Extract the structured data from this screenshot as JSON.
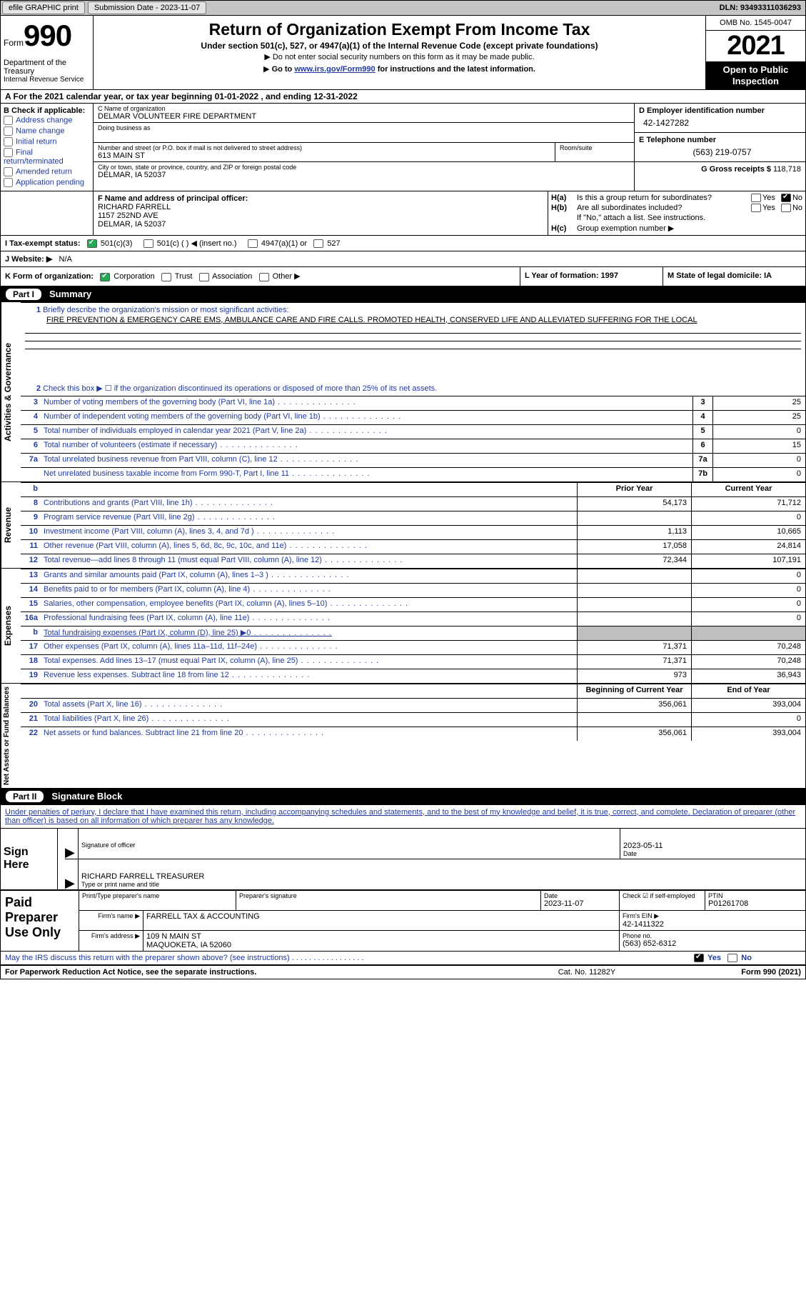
{
  "topbar": {
    "efile": "efile GRAPHIC print",
    "submission_label": "Submission Date - 2023-11-07",
    "dln_label": "DLN: 93493311036293"
  },
  "header": {
    "form_word": "Form",
    "form_num": "990",
    "dept": "Department of the Treasury",
    "irs": "Internal Revenue Service",
    "title": "Return of Organization Exempt From Income Tax",
    "sub1": "Under section 501(c), 527, or 4947(a)(1) of the Internal Revenue Code (except private foundations)",
    "sub2": "Do not enter social security numbers on this form as it may be made public.",
    "sub3_pre": "Go to ",
    "sub3_link": "www.irs.gov/Form990",
    "sub3_post": " for instructions and the latest information.",
    "omb": "OMB No. 1545-0047",
    "year": "2021",
    "otp1": "Open to Public",
    "otp2": "Inspection"
  },
  "lineA": "A For the 2021 calendar year, or tax year beginning 01-01-2022    , and ending 12-31-2022",
  "colB": {
    "hdr": "B Check if applicable:",
    "opts": [
      "Address change",
      "Name change",
      "Initial return",
      "Final return/terminated",
      "Amended return",
      "Application pending"
    ]
  },
  "colC": {
    "name_cap": "C Name of organization",
    "name_val": "DELMAR VOLUNTEER FIRE DEPARTMENT",
    "dba_cap": "Doing business as",
    "dba_val": "",
    "addr_cap": "Number and street (or P.O. box if mail is not delivered to street address)",
    "addr_val": "613 MAIN ST",
    "room_cap": "Room/suite",
    "room_val": "",
    "city_cap": "City or town, state or province, country, and ZIP or foreign postal code",
    "city_val": "DELMAR, IA  52037"
  },
  "colD": {
    "ein_cap": "D Employer identification number",
    "ein_val": "42-1427282",
    "tel_cap": "E Telephone number",
    "tel_val": "(563) 219-0757",
    "gross_cap": "G Gross receipts $",
    "gross_val": "118,718"
  },
  "colF": {
    "cap": "F Name and address of principal officer:",
    "l1": "RICHARD FARRELL",
    "l2": "1157 252ND AVE",
    "l3": "DELMAR, IA  52037"
  },
  "colH": {
    "ha": "H(a)",
    "ha_txt": "Is this a group return for subordinates?",
    "hb": "H(b)",
    "hb_txt": "Are all subordinates included?",
    "hb_note": "If \"No,\" attach a list. See instructions.",
    "hc": "H(c)",
    "hc_txt": "Group exemption number ▶",
    "yes": "Yes",
    "no": "No"
  },
  "rowI": {
    "lbl": "I Tax-exempt status:",
    "o1": "501(c)(3)",
    "o2": "501(c) (  ) ◀ (insert no.)",
    "o3": "4947(a)(1) or",
    "o4": "527"
  },
  "rowJ": {
    "lbl": "J  Website: ▶",
    "val": "N/A"
  },
  "rowK": {
    "lbl": "K Form of organization:",
    "o1": "Corporation",
    "o2": "Trust",
    "o3": "Association",
    "o4": "Other ▶",
    "L": "L Year of formation: 1997",
    "M": "M State of legal domicile: IA"
  },
  "part1": {
    "num": "Part I",
    "title": "Summary"
  },
  "vtabs": {
    "ag": "Activities & Governance",
    "rev": "Revenue",
    "exp": "Expenses",
    "na": "Net Assets or Fund Balances"
  },
  "line1": {
    "num": "1",
    "txt": "Briefly describe the organization's mission or most significant activities:",
    "val": "FIRE PREVENTION & EMERGENCY CARE EMS, AMBULANCE CARE AND FIRE CALLS. PROMOTED HEALTH, CONSERVED LIFE AND ALLEVIATED SUFFERING FOR THE LOCAL"
  },
  "line2": {
    "num": "2",
    "txt": "Check this box ▶ ☐ if the organization discontinued its operations or disposed of more than 25% of its net assets."
  },
  "govRows": [
    {
      "n": "3",
      "d": "Number of voting members of the governing body (Part VI, line 1a)",
      "b": "3",
      "v": "25"
    },
    {
      "n": "4",
      "d": "Number of independent voting members of the governing body (Part VI, line 1b)",
      "b": "4",
      "v": "25"
    },
    {
      "n": "5",
      "d": "Total number of individuals employed in calendar year 2021 (Part V, line 2a)",
      "b": "5",
      "v": "0"
    },
    {
      "n": "6",
      "d": "Total number of volunteers (estimate if necessary)",
      "b": "6",
      "v": "15"
    },
    {
      "n": "7a",
      "d": "Total unrelated business revenue from Part VIII, column (C), line 12",
      "b": "7a",
      "v": "0"
    },
    {
      "n": "",
      "d": "Net unrelated business taxable income from Form 990-T, Part I, line 11",
      "b": "7b",
      "v": "0"
    }
  ],
  "pcHdr": {
    "b": "b",
    "prior": "Prior Year",
    "curr": "Current Year"
  },
  "revRows": [
    {
      "n": "8",
      "d": "Contributions and grants (Part VIII, line 1h)",
      "p": "54,173",
      "c": "71,712"
    },
    {
      "n": "9",
      "d": "Program service revenue (Part VIII, line 2g)",
      "p": "",
      "c": "0"
    },
    {
      "n": "10",
      "d": "Investment income (Part VIII, column (A), lines 3, 4, and 7d )",
      "p": "1,113",
      "c": "10,665"
    },
    {
      "n": "11",
      "d": "Other revenue (Part VIII, column (A), lines 5, 6d, 8c, 9c, 10c, and 11e)",
      "p": "17,058",
      "c": "24,814"
    },
    {
      "n": "12",
      "d": "Total revenue—add lines 8 through 11 (must equal Part VIII, column (A), line 12)",
      "p": "72,344",
      "c": "107,191"
    }
  ],
  "expRows": [
    {
      "n": "13",
      "d": "Grants and similar amounts paid (Part IX, column (A), lines 1–3 )",
      "p": "",
      "c": "0"
    },
    {
      "n": "14",
      "d": "Benefits paid to or for members (Part IX, column (A), line 4)",
      "p": "",
      "c": "0"
    },
    {
      "n": "15",
      "d": "Salaries, other compensation, employee benefits (Part IX, column (A), lines 5–10)",
      "p": "",
      "c": "0"
    },
    {
      "n": "16a",
      "d": "Professional fundraising fees (Part IX, column (A), line 11e)",
      "p": "",
      "c": "0"
    },
    {
      "n": "b",
      "d": "Total fundraising expenses (Part IX, column (D), line 25) ▶0",
      "p": "SHADE",
      "c": "SHADE"
    },
    {
      "n": "17",
      "d": "Other expenses (Part IX, column (A), lines 11a–11d, 11f–24e)",
      "p": "71,371",
      "c": "70,248"
    },
    {
      "n": "18",
      "d": "Total expenses. Add lines 13–17 (must equal Part IX, column (A), line 25)",
      "p": "71,371",
      "c": "70,248"
    },
    {
      "n": "19",
      "d": "Revenue less expenses. Subtract line 18 from line 12",
      "p": "973",
      "c": "36,943"
    }
  ],
  "naHdr": {
    "prior": "Beginning of Current Year",
    "curr": "End of Year"
  },
  "naRows": [
    {
      "n": "20",
      "d": "Total assets (Part X, line 16)",
      "p": "356,061",
      "c": "393,004"
    },
    {
      "n": "21",
      "d": "Total liabilities (Part X, line 26)",
      "p": "",
      "c": "0"
    },
    {
      "n": "22",
      "d": "Net assets or fund balances. Subtract line 21 from line 20",
      "p": "356,061",
      "c": "393,004"
    }
  ],
  "part2": {
    "num": "Part II",
    "title": "Signature Block"
  },
  "penalty": "Under penalties of perjury, I declare that I have examined this return, including accompanying schedules and statements, and to the best of my knowledge and belief, it is true, correct, and complete. Declaration of preparer (other than officer) is based on all information of which preparer has any knowledge.",
  "sign": {
    "lbl1": "Sign",
    "lbl2": "Here",
    "sig_cap": "Signature of officer",
    "date_val": "2023-05-11",
    "date_cap": "Date",
    "name_val": "RICHARD FARRELL  TREASURER",
    "name_cap": "Type or print name and title"
  },
  "paid": {
    "lbl1": "Paid",
    "lbl2": "Preparer",
    "lbl3": "Use Only",
    "r1": {
      "c1": "Print/Type preparer's name",
      "c2": "Preparer's signature",
      "c3_cap": "Date",
      "c3_v": "2023-11-07",
      "c4": "Check ☑ if self-employed",
      "c5_cap": "PTIN",
      "c5_v": "P01261708"
    },
    "r2": {
      "lbl": "Firm's name    ▶",
      "v": "FARRELL TAX & ACCOUNTING",
      "ein_lbl": "Firm's EIN ▶",
      "ein_v": "42-1411322"
    },
    "r3": {
      "lbl": "Firm's address ▶",
      "v1": "109 N MAIN ST",
      "v2": "MAQUOKETA, IA  52060",
      "ph_lbl": "Phone no.",
      "ph_v": "(563) 652-6312"
    }
  },
  "may": {
    "txt": "May the IRS discuss this return with the preparer shown above? (see instructions)   .    .    .    .    .    .    .    .    .    .    .    .    .    .    .    .    .",
    "yes": "Yes",
    "no": "No"
  },
  "footer": {
    "l": "For Paperwork Reduction Act Notice, see the separate instructions.",
    "m": "Cat. No. 11282Y",
    "r": "Form 990 (2021)"
  }
}
